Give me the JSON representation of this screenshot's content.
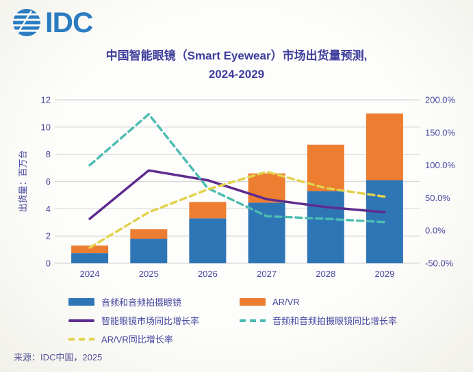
{
  "logo": {
    "text": "IDC",
    "color": "#2B7CC1"
  },
  "title": {
    "line1": "中国智能眼镜（Smart Eyewear）市场出货量预测,",
    "line2": "2024-2029"
  },
  "source": {
    "text": "来源：IDC中国，2025"
  },
  "colors": {
    "bar_blue": "#2E75B6",
    "bar_orange": "#ED7D31",
    "line_purple": "#5E2B8E",
    "line_teal": "#4DBDB2",
    "line_yellow": "#E2D24B",
    "axis_text": "#4646A0",
    "gridline": "#D6D6D6"
  },
  "chart_data": {
    "type": "combo-stacked-bar-line",
    "title": "中国智能眼镜（Smart Eyewear）市场出货量预测, 2024-2029",
    "categories": [
      "2024",
      "2025",
      "2026",
      "2027",
      "2028",
      "2029"
    ],
    "bar_series": [
      {
        "name": "音频和音频拍摄眼镜",
        "color": "#2E75B6",
        "values": [
          0.75,
          1.8,
          3.3,
          4.45,
          5.3,
          6.1
        ]
      },
      {
        "name": "AR/VR",
        "color": "#ED7D31",
        "values": [
          0.55,
          0.7,
          1.2,
          2.15,
          3.4,
          4.9
        ]
      }
    ],
    "line_series": [
      {
        "name": "智能眼镜市场同比增长率",
        "color": "#5E2B8E",
        "dash": false,
        "values": [
          18,
          92,
          77,
          48,
          36,
          28
        ]
      },
      {
        "name": "音频和音频拍摄眼镜同比增长率",
        "color": "#4DBDB2",
        "dash": true,
        "values": [
          100,
          178,
          65,
          22,
          18,
          13
        ]
      },
      {
        "name": "AR/VR同比增长率",
        "color": "#E2D24B",
        "dash": true,
        "values": [
          -26,
          28,
          63,
          90,
          65,
          52
        ]
      }
    ],
    "left_axis": {
      "label": "出货量：百万台",
      "min": 0,
      "max": 12,
      "ticks": [
        0,
        2,
        4,
        6,
        8,
        10,
        12
      ]
    },
    "right_axis": {
      "min": -50,
      "max": 200,
      "ticks": [
        {
          "label": "200.0%",
          "value": 200
        },
        {
          "label": "150.0%",
          "value": 150
        },
        {
          "label": "100.0%",
          "value": 100
        },
        {
          "label": "50.0%",
          "value": 50
        },
        {
          "label": "0.0%",
          "value": 0
        },
        {
          "label": "-50.0%",
          "value": -50
        }
      ]
    },
    "grid": true,
    "legend_position": "bottom"
  },
  "legend": {
    "items": [
      {
        "label": "音频和音频拍摄眼镜",
        "swatch": "bar",
        "color": "#2E75B6"
      },
      {
        "label": "AR/VR",
        "swatch": "bar",
        "color": "#ED7D31"
      },
      {
        "label": "智能眼镜市场同比增长率",
        "swatch": "line",
        "color": "#5E2B8E"
      },
      {
        "label": "音频和音频拍摄眼镜同比增长率",
        "swatch": "dashed-line",
        "color": "#4DBDB2"
      },
      {
        "label": "AR/VR同比增长率",
        "swatch": "dashed-line",
        "color": "#E2D24B"
      }
    ]
  }
}
